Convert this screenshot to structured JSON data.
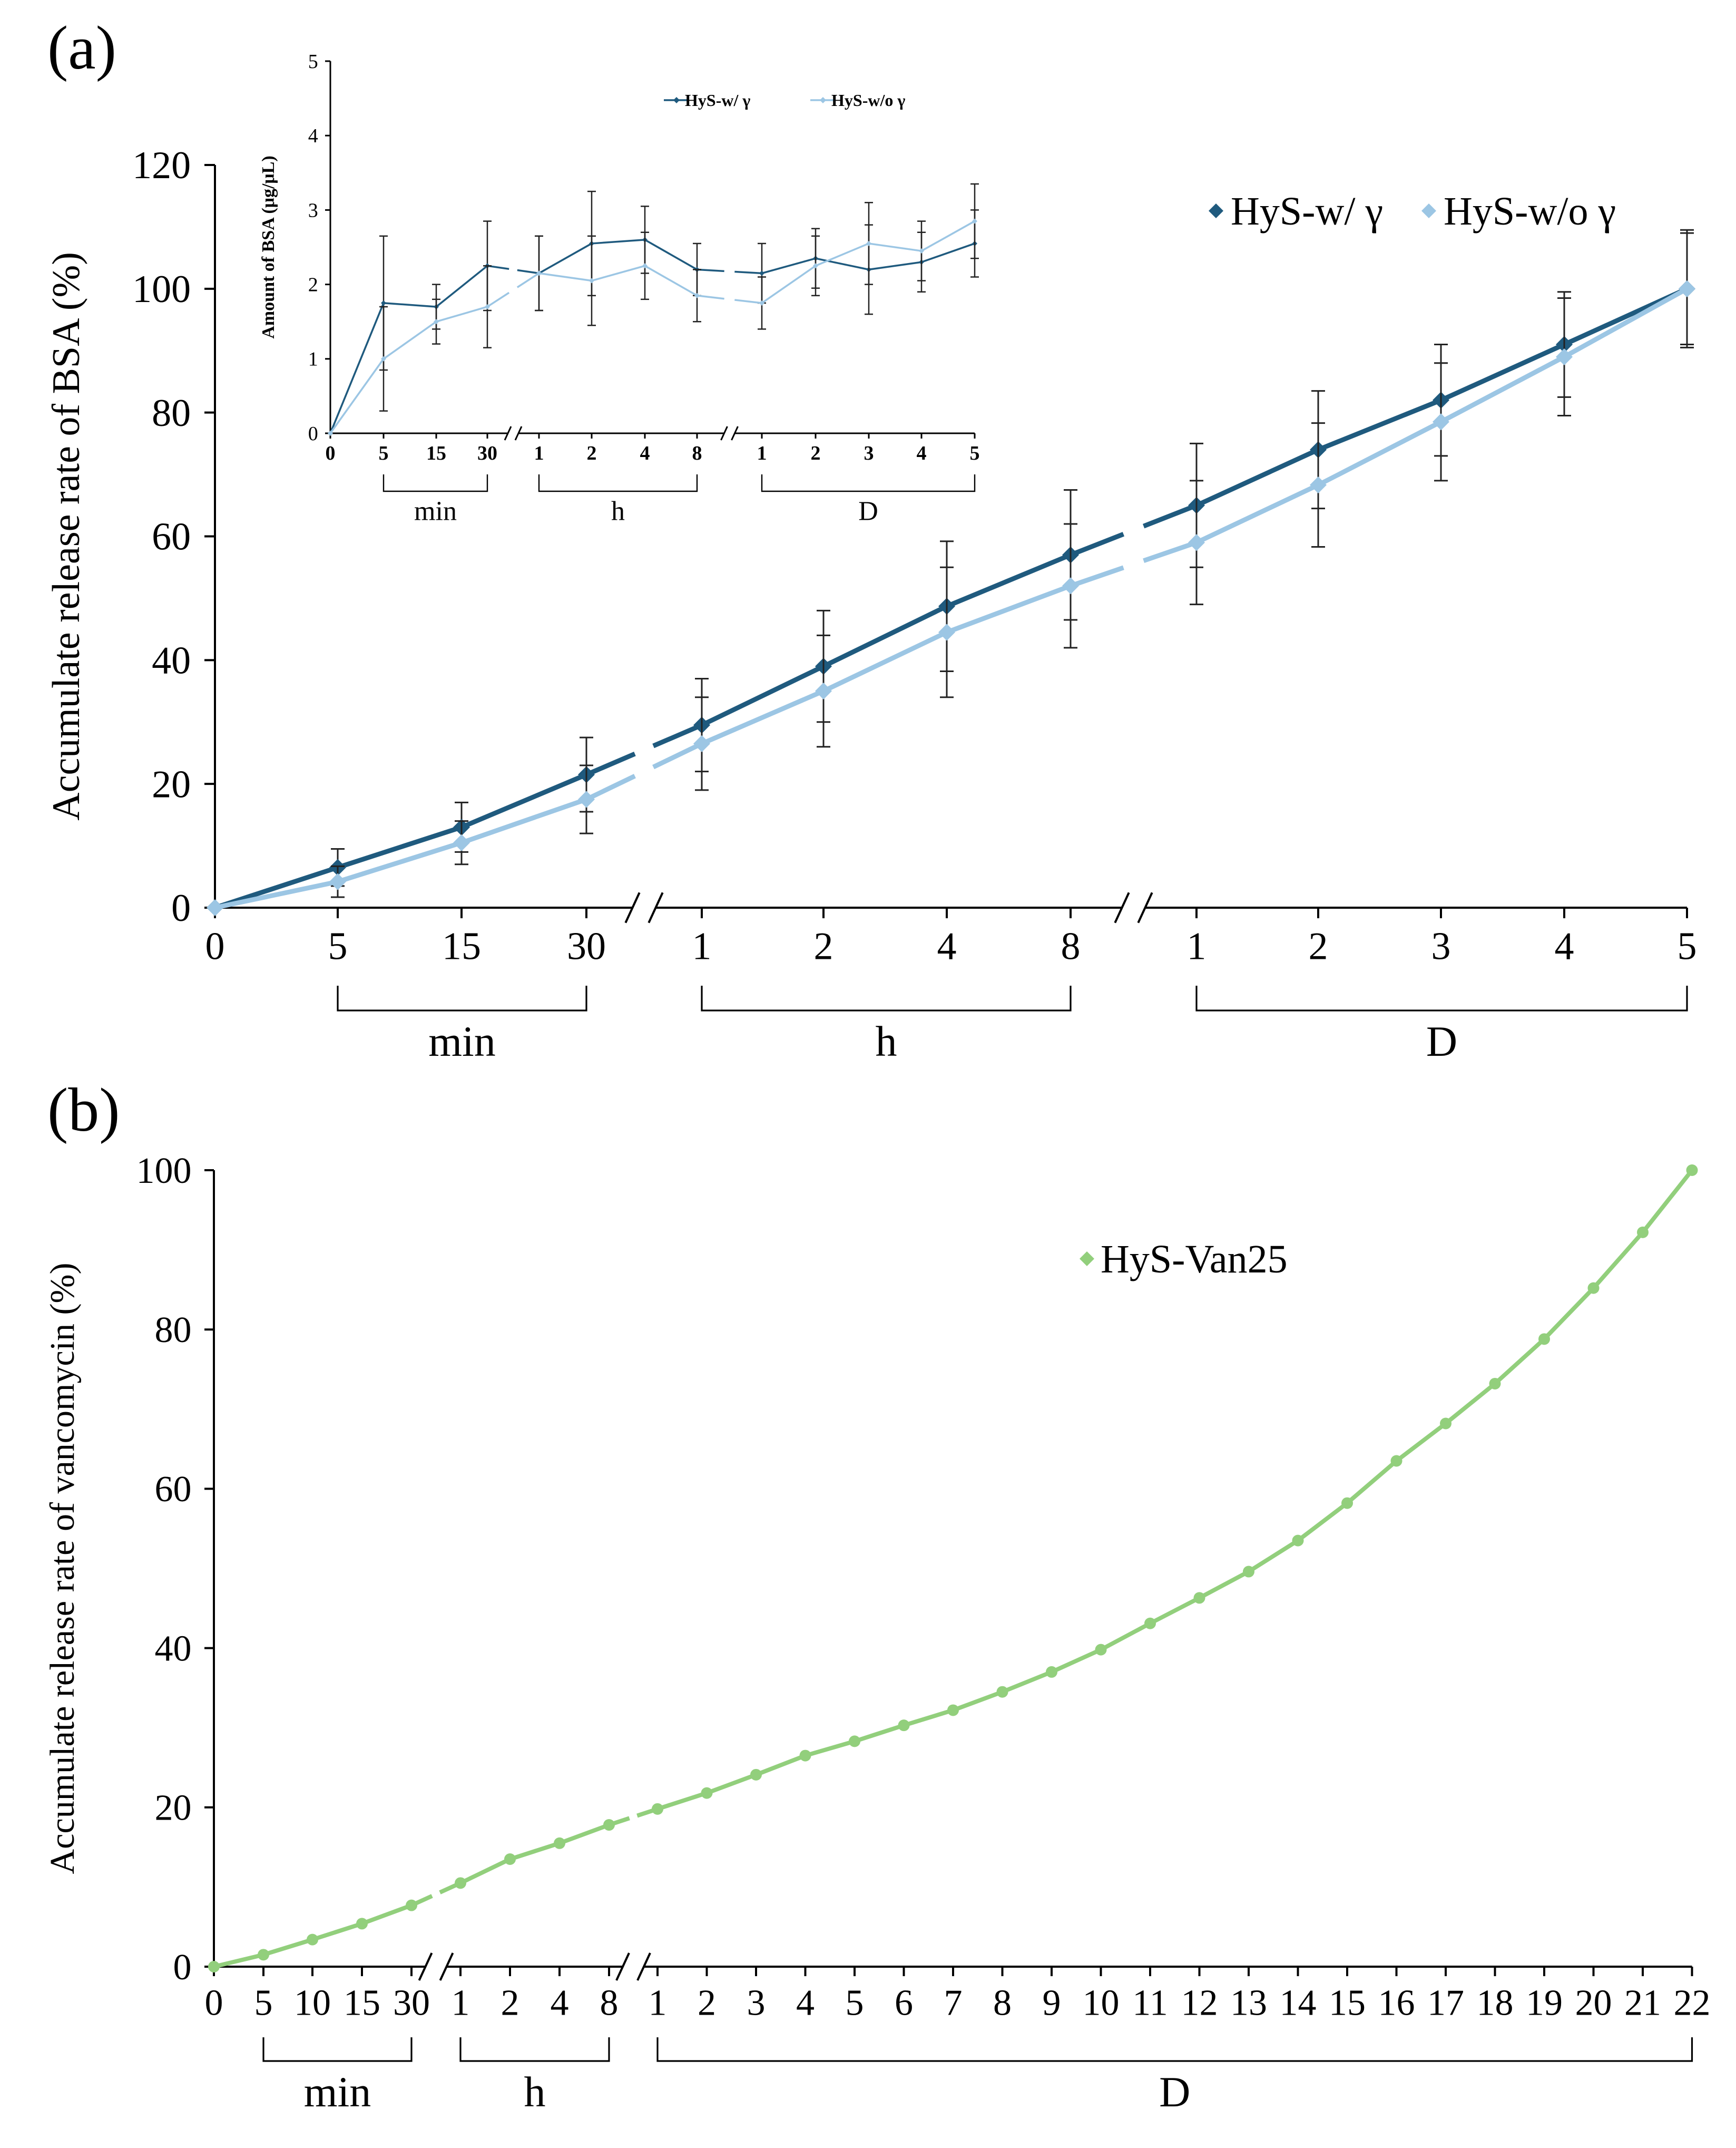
{
  "panel_a_label": "(a)",
  "panel_b_label": "(b)",
  "colors": {
    "dark": "#1f5a7e",
    "light": "#9cc6e4",
    "green": "#92cf7c",
    "axis": "#000000",
    "errbar": "#222222"
  },
  "chart_data": [
    {
      "id": "a-main",
      "type": "line",
      "ylabel": "Accumulate release rate of BSA (%)",
      "ylim": [
        0,
        120
      ],
      "yticks": [
        0,
        20,
        40,
        60,
        80,
        100,
        120
      ],
      "categories": [
        "0",
        "5",
        "15",
        "30",
        "1",
        "2",
        "4",
        "8",
        "1",
        "2",
        "3",
        "4",
        "5"
      ],
      "axis_breaks_after_index": [
        3,
        7
      ],
      "groups": [
        {
          "label": "min",
          "from": 1,
          "to": 3
        },
        {
          "label": "h",
          "from": 4,
          "to": 7
        },
        {
          "label": "D",
          "from": 8,
          "to": 12
        }
      ],
      "legend": {
        "position": "top-right"
      },
      "series": [
        {
          "name": "HyS-w/ γ",
          "color": "dark",
          "values": [
            0,
            6.5,
            13,
            21.5,
            29.5,
            39,
            48.7,
            57,
            65,
            74,
            82,
            91,
            100
          ],
          "errors": [
            0,
            3,
            4,
            6,
            7.5,
            9,
            10.5,
            10.5,
            10,
            9.5,
            9,
            8.5,
            9.5
          ]
        },
        {
          "name": "HyS-w/o γ",
          "color": "light",
          "values": [
            0,
            4.2,
            10.5,
            17.5,
            26.5,
            35,
            44.5,
            52,
            59,
            68.3,
            78.5,
            89,
            100
          ],
          "errors": [
            0,
            2.5,
            3.5,
            5.5,
            7.5,
            9,
            10.5,
            10,
            10,
            10,
            9.5,
            9.5,
            9
          ]
        }
      ]
    },
    {
      "id": "a-inset",
      "type": "line",
      "ylabel": "Amount of BSA (μg/μL)",
      "ylim": [
        0,
        5
      ],
      "yticks": [
        0,
        1,
        2,
        3,
        4,
        5
      ],
      "categories": [
        "0",
        "5",
        "15",
        "30",
        "1",
        "2",
        "4",
        "8",
        "1",
        "2",
        "3",
        "4",
        "5"
      ],
      "axis_breaks_after_index": [
        3,
        7
      ],
      "groups": [
        {
          "label": "min",
          "from": 1,
          "to": 3
        },
        {
          "label": "h",
          "from": 4,
          "to": 7
        },
        {
          "label": "D",
          "from": 8,
          "to": 12
        }
      ],
      "legend": {
        "position": "top-center"
      },
      "series": [
        {
          "name": "HyS-w/ γ",
          "color": "dark",
          "values": [
            0,
            1.75,
            1.7,
            2.25,
            2.15,
            2.55,
            2.6,
            2.2,
            2.15,
            2.35,
            2.2,
            2.3,
            2.55
          ],
          "errors": [
            0,
            0.9,
            0.3,
            0.6,
            0.5,
            0.7,
            0.45,
            0.35,
            0.4,
            0.4,
            0.6,
            0.4,
            0.45
          ]
        },
        {
          "name": "HyS-w/o γ",
          "color": "light",
          "values": [
            0,
            1.0,
            1.5,
            1.7,
            2.15,
            2.05,
            2.25,
            1.85,
            1.75,
            2.25,
            2.55,
            2.45,
            2.85
          ],
          "errors": [
            0,
            0.7,
            0.3,
            0.55,
            0.5,
            0.6,
            0.45,
            0.35,
            0.35,
            0.4,
            0.55,
            0.4,
            0.5
          ]
        }
      ]
    },
    {
      "id": "b-main",
      "type": "line",
      "ylabel": "Accumulate release rate of vancomycin (%)",
      "ylim": [
        0,
        100
      ],
      "yticks": [
        0,
        20,
        40,
        60,
        80,
        100
      ],
      "categories": [
        "0",
        "5",
        "10",
        "15",
        "30",
        "1",
        "2",
        "4",
        "8",
        "1",
        "2",
        "3",
        "4",
        "5",
        "6",
        "7",
        "8",
        "9",
        "10",
        "11",
        "12",
        "13",
        "14",
        "15",
        "16",
        "17",
        "18",
        "19",
        "20",
        "21",
        "22"
      ],
      "axis_breaks_after_index": [
        4,
        8
      ],
      "groups": [
        {
          "label": "min",
          "from": 1,
          "to": 4
        },
        {
          "label": "h",
          "from": 5,
          "to": 8
        },
        {
          "label": "D",
          "from": 9,
          "to": 30
        }
      ],
      "legend": {
        "position": "top-center"
      },
      "series": [
        {
          "name": "HyS-Van25",
          "color": "green",
          "values": [
            0,
            1.5,
            3.4,
            5.4,
            7.7,
            10.5,
            13.5,
            15.5,
            17.8,
            19.8,
            21.8,
            24.1,
            26.5,
            28.3,
            30.3,
            32.2,
            34.5,
            37,
            39.8,
            43.1,
            46.3,
            49.6,
            53.5,
            58.2,
            63.5,
            68.2,
            73.2,
            78.8,
            85.2,
            92.2,
            100
          ]
        }
      ]
    }
  ]
}
